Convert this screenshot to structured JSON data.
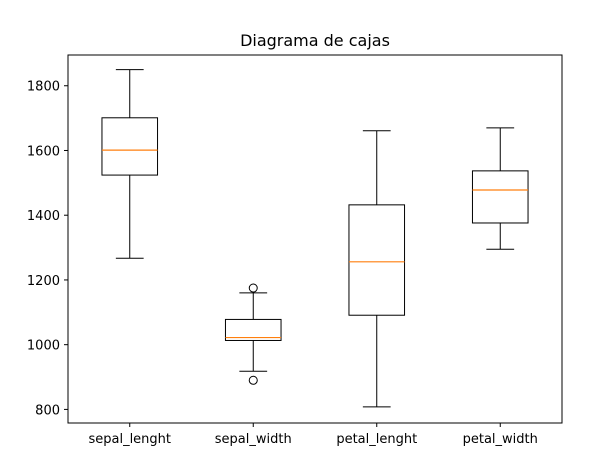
{
  "chart_data": {
    "type": "box",
    "title": "Diagrama de cajas",
    "xlabel": "",
    "ylabel": "",
    "ylim": [
      758,
      1895
    ],
    "yticks": [
      800,
      1000,
      1200,
      1400,
      1600,
      1800
    ],
    "categories": [
      "sepal_lenght",
      "sepal_width",
      "petal_lenght",
      "petal_width"
    ],
    "boxes": [
      {
        "category": "sepal_lenght",
        "whisker_low": 1267,
        "q1": 1524,
        "median": 1601,
        "q3": 1701,
        "whisker_high": 1850,
        "outliers": []
      },
      {
        "category": "sepal_width",
        "whisker_low": 918,
        "q1": 1013,
        "median": 1022,
        "q3": 1078,
        "whisker_high": 1160,
        "outliers": [
          890,
          1175
        ]
      },
      {
        "category": "petal_lenght",
        "whisker_low": 808,
        "q1": 1091,
        "median": 1256,
        "q3": 1432,
        "whisker_high": 1661,
        "outliers": []
      },
      {
        "category": "petal_width",
        "whisker_low": 1295,
        "q1": 1376,
        "median": 1478,
        "q3": 1537,
        "whisker_high": 1670,
        "outliers": []
      }
    ],
    "grid": false,
    "legend": "none",
    "colors": {
      "box": "#000000",
      "median": "#ff7f0e",
      "background": "#ffffff"
    }
  }
}
